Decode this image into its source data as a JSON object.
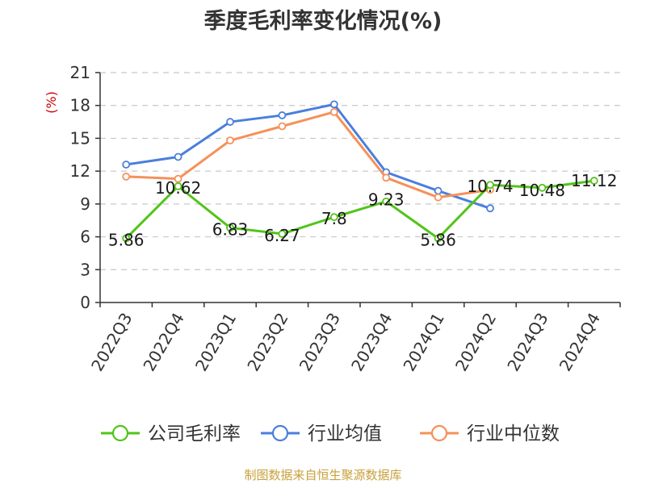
{
  "title": "季度毛利率变化情况(%)",
  "source": "制图数据来自恒生聚源数据库",
  "chart_data": {
    "type": "line",
    "title": "季度毛利率变化情况(%)",
    "ylabel": "(%)",
    "xlabel": "",
    "ylim": [
      0,
      21
    ],
    "yticks": [
      0,
      3,
      6,
      9,
      12,
      15,
      18,
      21
    ],
    "grid": true,
    "legend_position": "bottom",
    "categories": [
      "2022Q3",
      "2022Q4",
      "2023Q1",
      "2023Q2",
      "2023Q3",
      "2023Q4",
      "2024Q1",
      "2024Q2",
      "2024Q3",
      "2024Q4"
    ],
    "series": [
      {
        "name": "公司毛利率",
        "color": "#52c41a",
        "values": [
          5.86,
          10.62,
          6.83,
          6.27,
          7.8,
          9.23,
          5.86,
          10.74,
          10.48,
          11.12
        ],
        "labels": [
          "5.86",
          "10.62",
          "6.83",
          "6.27",
          "7.8",
          "9.23",
          "5.86",
          "10.74",
          "10.48",
          "11.12"
        ]
      },
      {
        "name": "行业均值",
        "color": "#4a7fdc",
        "values": [
          12.6,
          13.3,
          16.5,
          17.1,
          18.1,
          11.9,
          10.2,
          8.6,
          null,
          null
        ]
      },
      {
        "name": "行业中位数",
        "color": "#f5915a",
        "values": [
          11.5,
          11.3,
          14.8,
          16.1,
          17.4,
          11.4,
          9.6,
          10.3,
          null,
          null
        ]
      }
    ]
  }
}
